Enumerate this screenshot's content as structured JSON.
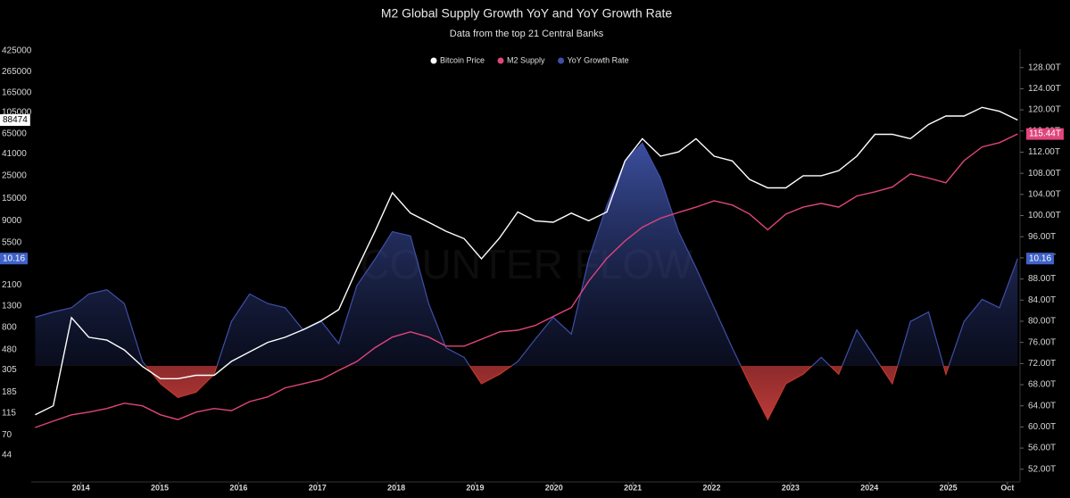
{
  "chart_data": {
    "type": "line",
    "title": "M2 Global Supply Growth YoY and YoY Growth Rate",
    "subtitle": "Data from the top 21 Central Banks",
    "watermark": "COUNTER FLOW",
    "x": [
      2013.42,
      2013.65,
      2013.88,
      2014.1,
      2014.33,
      2014.55,
      2014.78,
      2015.01,
      2015.23,
      2015.46,
      2015.69,
      2015.91,
      2016.14,
      2016.37,
      2016.59,
      2016.82,
      2017.05,
      2017.27,
      2017.5,
      2017.73,
      2017.95,
      2018.18,
      2018.41,
      2018.63,
      2018.86,
      2019.08,
      2019.31,
      2019.54,
      2019.76,
      2019.99,
      2020.22,
      2020.44,
      2020.67,
      2020.9,
      2021.12,
      2021.35,
      2021.58,
      2021.8,
      2022.03,
      2022.26,
      2022.48,
      2022.71,
      2022.94,
      2023.16,
      2023.39,
      2023.61,
      2023.84,
      2024.07,
      2024.29,
      2024.52,
      2024.75,
      2024.97,
      2025.2,
      2025.43,
      2025.65,
      2025.88
    ],
    "xlim": [
      2013.37,
      2025.91
    ],
    "xticks": [
      2014,
      2015,
      2016,
      2017,
      2018,
      2019,
      2020,
      2021,
      2022,
      2023,
      2024,
      2025,
      {
        "value": 2025.75,
        "label": "Oct"
      }
    ],
    "ylim": [
      24,
      443000
    ],
    "ylog": true,
    "yticks": [
      44,
      70,
      115,
      185,
      305,
      480,
      800,
      1300,
      2100,
      5500,
      9000,
      15000,
      25000,
      41000,
      65000,
      105000,
      165000,
      265000,
      425000
    ],
    "y2lim": [
      49.6,
      131.5
    ],
    "y2ticks": [
      {
        "value": 52,
        "label": "52.00T"
      },
      {
        "value": 56,
        "label": "56.00T"
      },
      {
        "value": 60,
        "label": "60.00T"
      },
      {
        "value": 64,
        "label": "64.00T"
      },
      {
        "value": 68,
        "label": "68.00T"
      },
      {
        "value": 72,
        "label": "72.00T"
      },
      {
        "value": 76,
        "label": "76.00T"
      },
      {
        "value": 80,
        "label": "80.00T"
      },
      {
        "value": 84,
        "label": "84.00T"
      },
      {
        "value": 88,
        "label": "88.00T"
      },
      {
        "value": 92,
        "label": "92.00T"
      },
      {
        "value": 96,
        "label": "96.00T"
      },
      {
        "value": 100,
        "label": "100.00T"
      },
      {
        "value": 104,
        "label": "104.00T"
      },
      {
        "value": 108,
        "label": "108.00T"
      },
      {
        "value": 112,
        "label": "112.00T"
      },
      {
        "value": 116,
        "label": "116.00T"
      },
      {
        "value": 120,
        "label": "120.00T"
      },
      {
        "value": 124,
        "label": "124.00T"
      },
      {
        "value": 128,
        "label": "128.00T"
      }
    ],
    "y3lim": [
      -11,
      30
    ],
    "grid": false,
    "legend": "top",
    "series": [
      {
        "name": "Bitcoin Price",
        "color": "#ffffff",
        "axis": "y",
        "values": [
          110,
          135,
          1000,
          640,
          600,
          480,
          330,
          250,
          250,
          270,
          270,
          370,
          460,
          570,
          640,
          760,
          930,
          1200,
          3000,
          7100,
          17000,
          10700,
          8700,
          7100,
          6000,
          3800,
          6100,
          11000,
          9000,
          8700,
          10700,
          9000,
          11000,
          35000,
          58000,
          39000,
          43000,
          58000,
          39000,
          35000,
          23000,
          19000,
          19000,
          25000,
          25000,
          28000,
          39000,
          64000,
          64000,
          58000,
          80000,
          97000,
          97000,
          118000,
          108000,
          88474
        ]
      },
      {
        "name": "M2 Supply",
        "color": "#e0457b",
        "axis": "y2",
        "last_label": "115.44T",
        "values": [
          59.9,
          61.1,
          62.3,
          62.8,
          63.5,
          64.5,
          64.0,
          62.3,
          61.4,
          62.8,
          63.5,
          63.1,
          64.8,
          65.7,
          67.4,
          68.2,
          69.0,
          70.7,
          72.4,
          75.0,
          77.0,
          78.0,
          77.0,
          75.3,
          75.3,
          76.6,
          78.0,
          78.3,
          79.2,
          80.9,
          82.6,
          87.6,
          91.9,
          95.2,
          97.8,
          99.5,
          100.6,
          101.6,
          102.8,
          102.0,
          100.3,
          97.3,
          100.3,
          101.6,
          102.3,
          101.6,
          103.7,
          104.5,
          105.4,
          107.9,
          107.1,
          106.2,
          110.4,
          113.0,
          113.8,
          115.44
        ]
      },
      {
        "name": "YoY Growth Rate",
        "color": "#3f4fa8",
        "negative_color": "#c0392b",
        "axis": "y3",
        "area": true,
        "values": [
          4.6,
          5.1,
          5.5,
          6.8,
          7.2,
          5.9,
          0.4,
          -1.7,
          -3.0,
          -2.5,
          -0.8,
          4.2,
          6.8,
          5.9,
          5.5,
          3.4,
          4.2,
          2.1,
          7.6,
          10.1,
          12.7,
          12.3,
          5.9,
          1.7,
          0.8,
          -1.7,
          -0.8,
          0.4,
          2.5,
          4.6,
          3.0,
          10.1,
          15.2,
          19.4,
          21.1,
          17.8,
          12.7,
          9.3,
          5.5,
          1.7,
          -1.7,
          -5.1,
          -1.7,
          -0.8,
          0.8,
          -0.8,
          3.4,
          0.8,
          -1.7,
          4.2,
          5.1,
          -0.8,
          4.2,
          6.3,
          5.5,
          10.16
        ]
      }
    ]
  }
}
